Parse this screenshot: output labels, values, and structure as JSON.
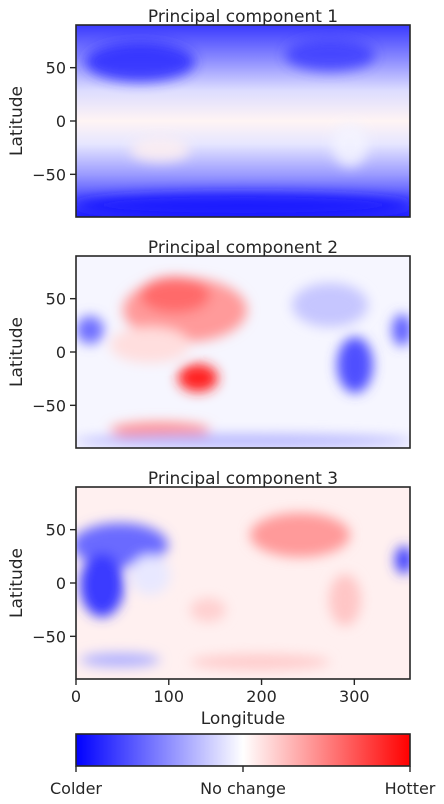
{
  "chart_data": {
    "type": "heatmap",
    "panels": [
      {
        "title": "Principal component 1",
        "ylabel": "Latitude",
        "xlim": [
          0,
          360
        ],
        "ylim": [
          -90,
          90
        ],
        "yticks": [
          {
            "v": 50,
            "label": "50"
          },
          {
            "v": 0,
            "label": "0"
          },
          {
            "v": -50,
            "label": "−50"
          }
        ],
        "pattern": "cold poles, warm tropics"
      },
      {
        "title": "Principal component 2",
        "ylabel": "Latitude",
        "xlim": [
          0,
          360
        ],
        "ylim": [
          -90,
          90
        ],
        "yticks": [
          {
            "v": 50,
            "label": "50"
          },
          {
            "v": 0,
            "label": "0"
          },
          {
            "v": -50,
            "label": "−50"
          }
        ],
        "pattern": "hot Asia and Australia, cold Americas and Africa"
      },
      {
        "title": "Principal component 3",
        "ylabel": "Latitude",
        "xlabel": "Longitude",
        "xlim": [
          0,
          360
        ],
        "ylim": [
          -90,
          90
        ],
        "xticks": [
          {
            "v": 0,
            "label": "0"
          },
          {
            "v": 100,
            "label": "100"
          },
          {
            "v": 200,
            "label": "200"
          },
          {
            "v": 300,
            "label": "300"
          }
        ],
        "yticks": [
          {
            "v": 50,
            "label": "50"
          },
          {
            "v": 0,
            "label": "0"
          },
          {
            "v": -50,
            "label": "−50"
          }
        ],
        "pattern": "cold Africa and Europe, warm Americas"
      }
    ],
    "colorbar": {
      "colormap": "bwr",
      "colors": [
        "#0000ff",
        "#ffffff",
        "#ff0000"
      ],
      "ticks": [
        {
          "pos": 0,
          "label": "Colder"
        },
        {
          "pos": 0.5,
          "label": "No change"
        },
        {
          "pos": 1,
          "label": "Hotter"
        }
      ]
    }
  }
}
